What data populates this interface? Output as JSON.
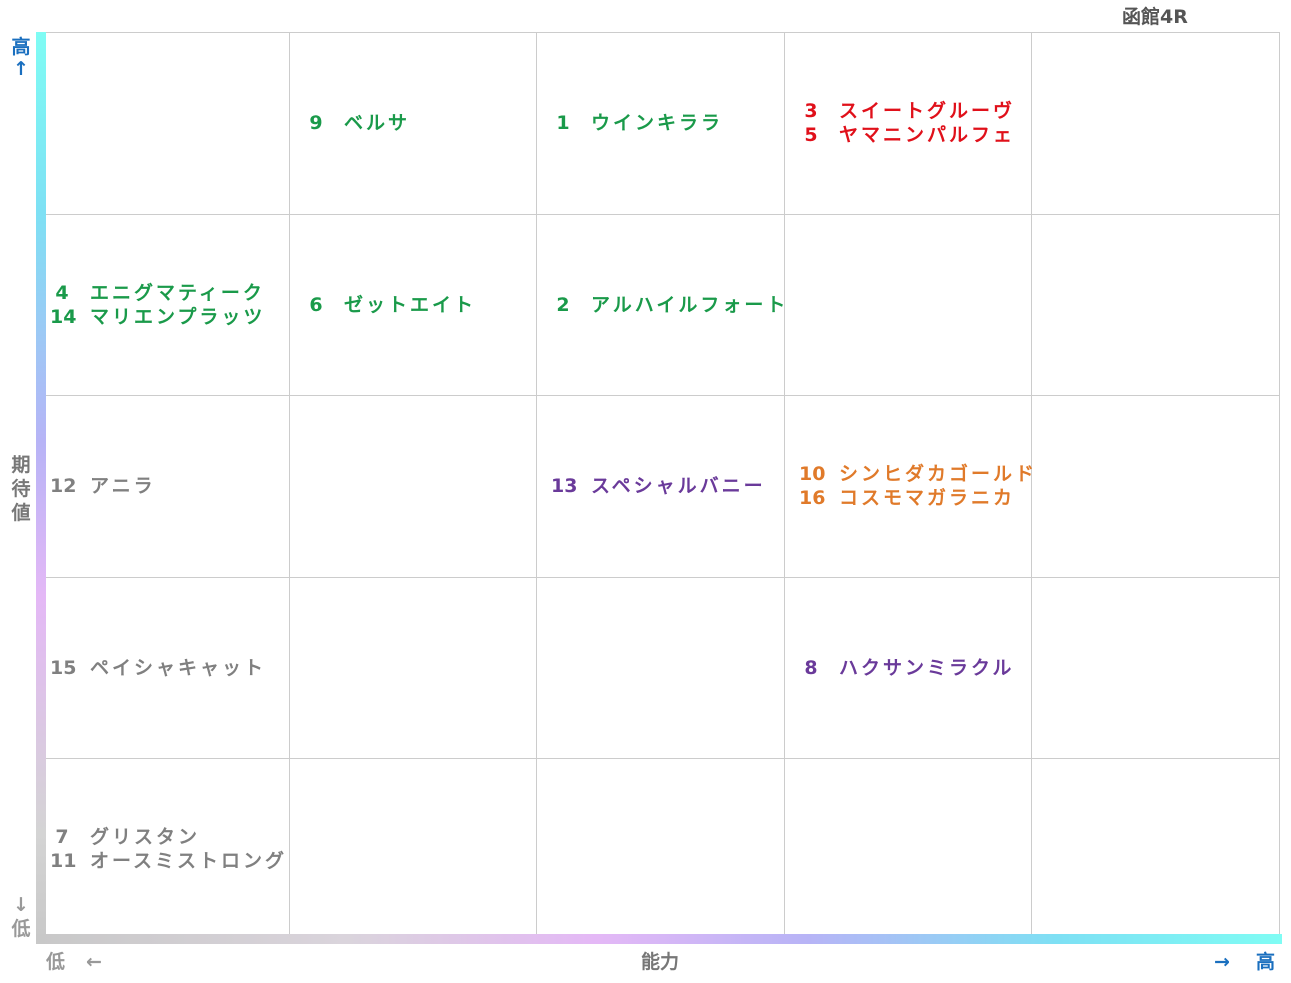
{
  "race": "函館4R",
  "axes": {
    "y_title": "期待値",
    "y_high": "高",
    "y_high_arrow": "↑",
    "y_low_arrow": "↓",
    "y_low": "低",
    "x_title": "能力",
    "x_low": "低",
    "x_low_arrow": "←",
    "x_high_arrow": "→",
    "x_high": "高"
  },
  "colors": {
    "green": "#1a9a4a",
    "red": "#e0101a",
    "purple": "#6a3a9a",
    "orange": "#e07a2a",
    "gray": "#808080"
  },
  "grid": {
    "cols": 5,
    "rows": 5
  },
  "cells": [
    {
      "row": 0,
      "col": 1,
      "entries": [
        {
          "num": "9",
          "name": "ベルサ",
          "color": "green"
        }
      ]
    },
    {
      "row": 0,
      "col": 2,
      "entries": [
        {
          "num": "1",
          "name": "ウインキララ",
          "color": "green"
        }
      ]
    },
    {
      "row": 0,
      "col": 3,
      "entries": [
        {
          "num": "3",
          "name": "スイートグルーヴ",
          "color": "red"
        },
        {
          "num": "5",
          "name": "ヤマニンパルフェ",
          "color": "red"
        }
      ]
    },
    {
      "row": 1,
      "col": 0,
      "entries": [
        {
          "num": "4",
          "name": "エニグマティーク",
          "color": "green"
        },
        {
          "num": "14",
          "name": "マリエンプラッツ",
          "color": "green"
        }
      ]
    },
    {
      "row": 1,
      "col": 1,
      "entries": [
        {
          "num": "6",
          "name": "ゼットエイト",
          "color": "green"
        }
      ]
    },
    {
      "row": 1,
      "col": 2,
      "entries": [
        {
          "num": "2",
          "name": "アルハイルフォート",
          "color": "green"
        }
      ]
    },
    {
      "row": 2,
      "col": 0,
      "entries": [
        {
          "num": "12",
          "name": "アニラ",
          "color": "gray"
        }
      ]
    },
    {
      "row": 2,
      "col": 2,
      "entries": [
        {
          "num": "13",
          "name": "スペシャルバニー",
          "color": "purple"
        }
      ]
    },
    {
      "row": 2,
      "col": 3,
      "entries": [
        {
          "num": "10",
          "name": "シンヒダカゴールド",
          "color": "orange"
        },
        {
          "num": "16",
          "name": "コスモマガラニカ",
          "color": "orange"
        }
      ]
    },
    {
      "row": 3,
      "col": 0,
      "entries": [
        {
          "num": "15",
          "name": "ペイシャキャット",
          "color": "gray"
        }
      ]
    },
    {
      "row": 3,
      "col": 3,
      "entries": [
        {
          "num": "8",
          "name": "ハクサンミラクル",
          "color": "purple"
        }
      ]
    },
    {
      "row": 4,
      "col": 0,
      "entries": [
        {
          "num": "7",
          "name": "グリスタン",
          "color": "gray"
        },
        {
          "num": "11",
          "name": "オースミストロング",
          "color": "gray"
        }
      ]
    }
  ]
}
